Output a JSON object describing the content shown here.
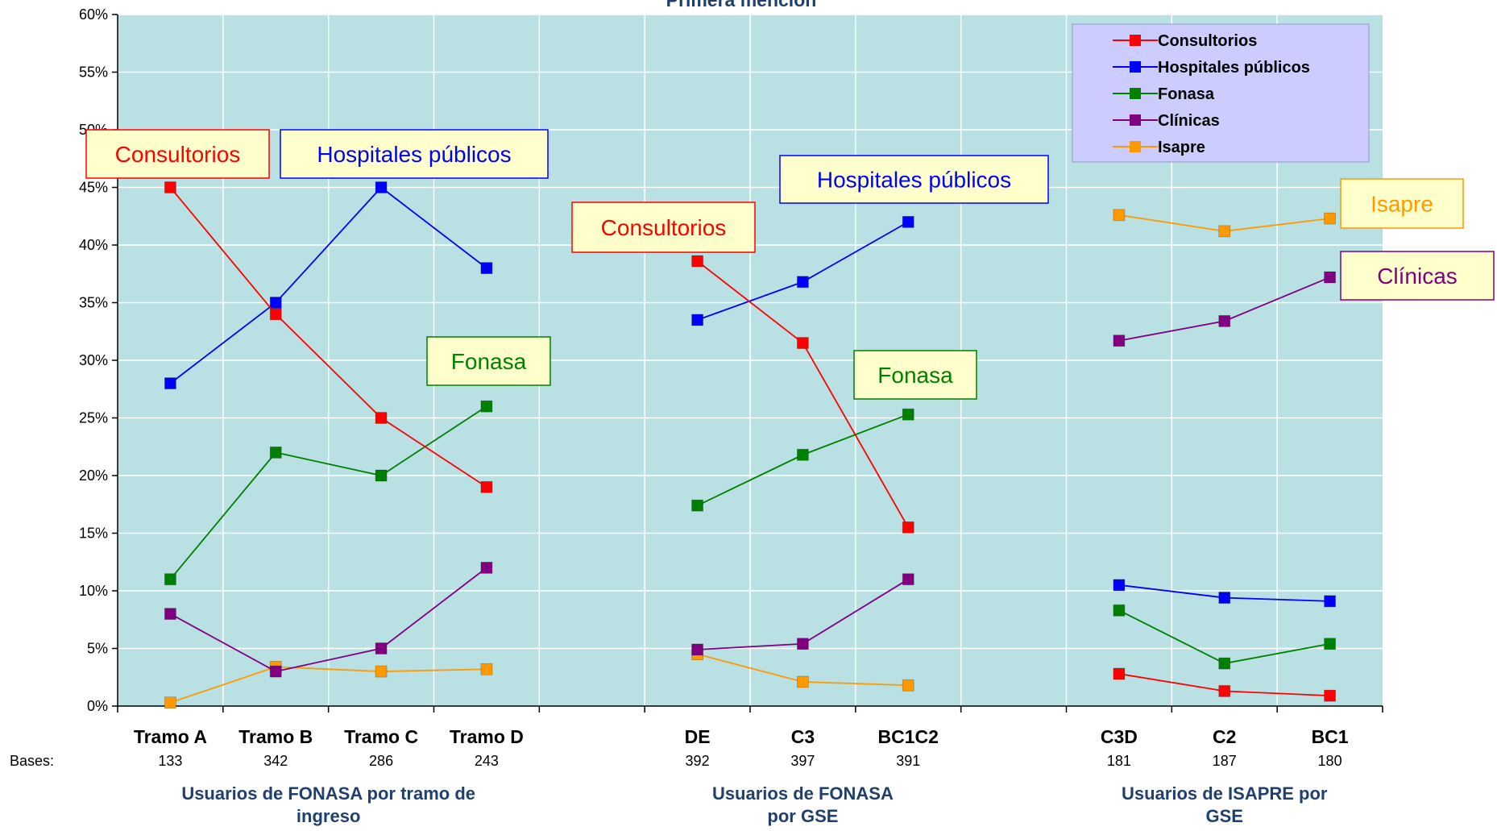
{
  "chart_data": {
    "type": "line",
    "title": "Primera mención",
    "ylim": [
      0,
      0.6
    ],
    "y_ticks": [
      "0%",
      "5%",
      "10%",
      "15%",
      "20%",
      "25%",
      "30%",
      "35%",
      "40%",
      "45%",
      "50%",
      "55%",
      "60%"
    ],
    "grid": true,
    "legend_position": "top-right",
    "bases_label": "Bases:",
    "groups": [
      {
        "label": "Usuarios de FONASA por tramo de ingreso",
        "label_lines": [
          "Usuarios de FONASA por tramo de",
          "ingreso"
        ],
        "categories": [
          "Tramo A",
          "Tramo B",
          "Tramo C",
          "Tramo D"
        ],
        "bases": [
          "133",
          "342",
          "286",
          "243"
        ],
        "series": [
          {
            "name": "Consultorios",
            "values": [
              0.45,
              0.34,
              0.25,
              0.19
            ]
          },
          {
            "name": "Hospitales públicos",
            "values": [
              0.28,
              0.35,
              0.45,
              0.38
            ]
          },
          {
            "name": "Fonasa",
            "values": [
              0.11,
              0.22,
              0.2,
              0.26
            ]
          },
          {
            "name": "Clínicas",
            "values": [
              0.08,
              0.03,
              0.05,
              0.12
            ]
          },
          {
            "name": "Isapre",
            "values": [
              0.003,
              0.034,
              0.03,
              0.032
            ]
          }
        ]
      },
      {
        "label": "Usuarios de FONASA por GSE",
        "label_lines": [
          "Usuarios de FONASA",
          "por GSE"
        ],
        "categories": [
          "DE",
          "C3",
          "BC1C2"
        ],
        "bases": [
          "392",
          "397",
          "391"
        ],
        "series": [
          {
            "name": "Consultorios",
            "values": [
              0.386,
              0.315,
              0.155
            ]
          },
          {
            "name": "Hospitales públicos",
            "values": [
              0.335,
              0.368,
              0.42
            ]
          },
          {
            "name": "Fonasa",
            "values": [
              0.174,
              0.218,
              0.253
            ]
          },
          {
            "name": "Clínicas",
            "values": [
              0.049,
              0.054,
              0.11
            ]
          },
          {
            "name": "Isapre",
            "values": [
              0.045,
              0.021,
              0.018
            ]
          }
        ]
      },
      {
        "label": "Usuarios de ISAPRE por GSE",
        "label_lines": [
          "Usuarios de ISAPRE por",
          "GSE"
        ],
        "categories": [
          "C3D",
          "C2",
          "BC1"
        ],
        "bases": [
          "181",
          "187",
          "180"
        ],
        "series": [
          {
            "name": "Consultorios",
            "values": [
              0.028,
              0.013,
              0.009
            ]
          },
          {
            "name": "Hospitales públicos",
            "values": [
              0.105,
              0.094,
              0.091
            ]
          },
          {
            "name": "Fonasa",
            "values": [
              0.083,
              0.037,
              0.054
            ]
          },
          {
            "name": "Clínicas",
            "values": [
              0.317,
              0.334,
              0.372
            ]
          },
          {
            "name": "Isapre",
            "values": [
              0.426,
              0.412,
              0.423
            ]
          }
        ]
      }
    ],
    "legend": [
      {
        "name": "Consultorios",
        "color": "#ff0000"
      },
      {
        "name": "Hospitales públicos",
        "color": "#0000ff"
      },
      {
        "name": "Fonasa",
        "color": "#008000"
      },
      {
        "name": "Clínicas",
        "color": "#800080"
      },
      {
        "name": "Isapre",
        "color": "#ff9900"
      }
    ],
    "callouts": [
      {
        "text": "Consultorios",
        "series": "Consultorios"
      },
      {
        "text": "Hospitales públicos",
        "series": "Hospitales públicos"
      },
      {
        "text": "Fonasa",
        "series": "Fonasa"
      },
      {
        "text": "Consultorios",
        "series": "Consultorios"
      },
      {
        "text": "Hospitales públicos",
        "series": "Hospitales públicos"
      },
      {
        "text": "Fonasa",
        "series": "Fonasa"
      },
      {
        "text": "Isapre",
        "series": "Isapre"
      },
      {
        "text": "Clínicas",
        "series": "Clínicas"
      }
    ],
    "colors": {
      "plot_background": "#b9e0e2",
      "legend_background": "#ccccff",
      "callout_background": "#ffffcc",
      "group_label": "#1f3f6f"
    }
  }
}
